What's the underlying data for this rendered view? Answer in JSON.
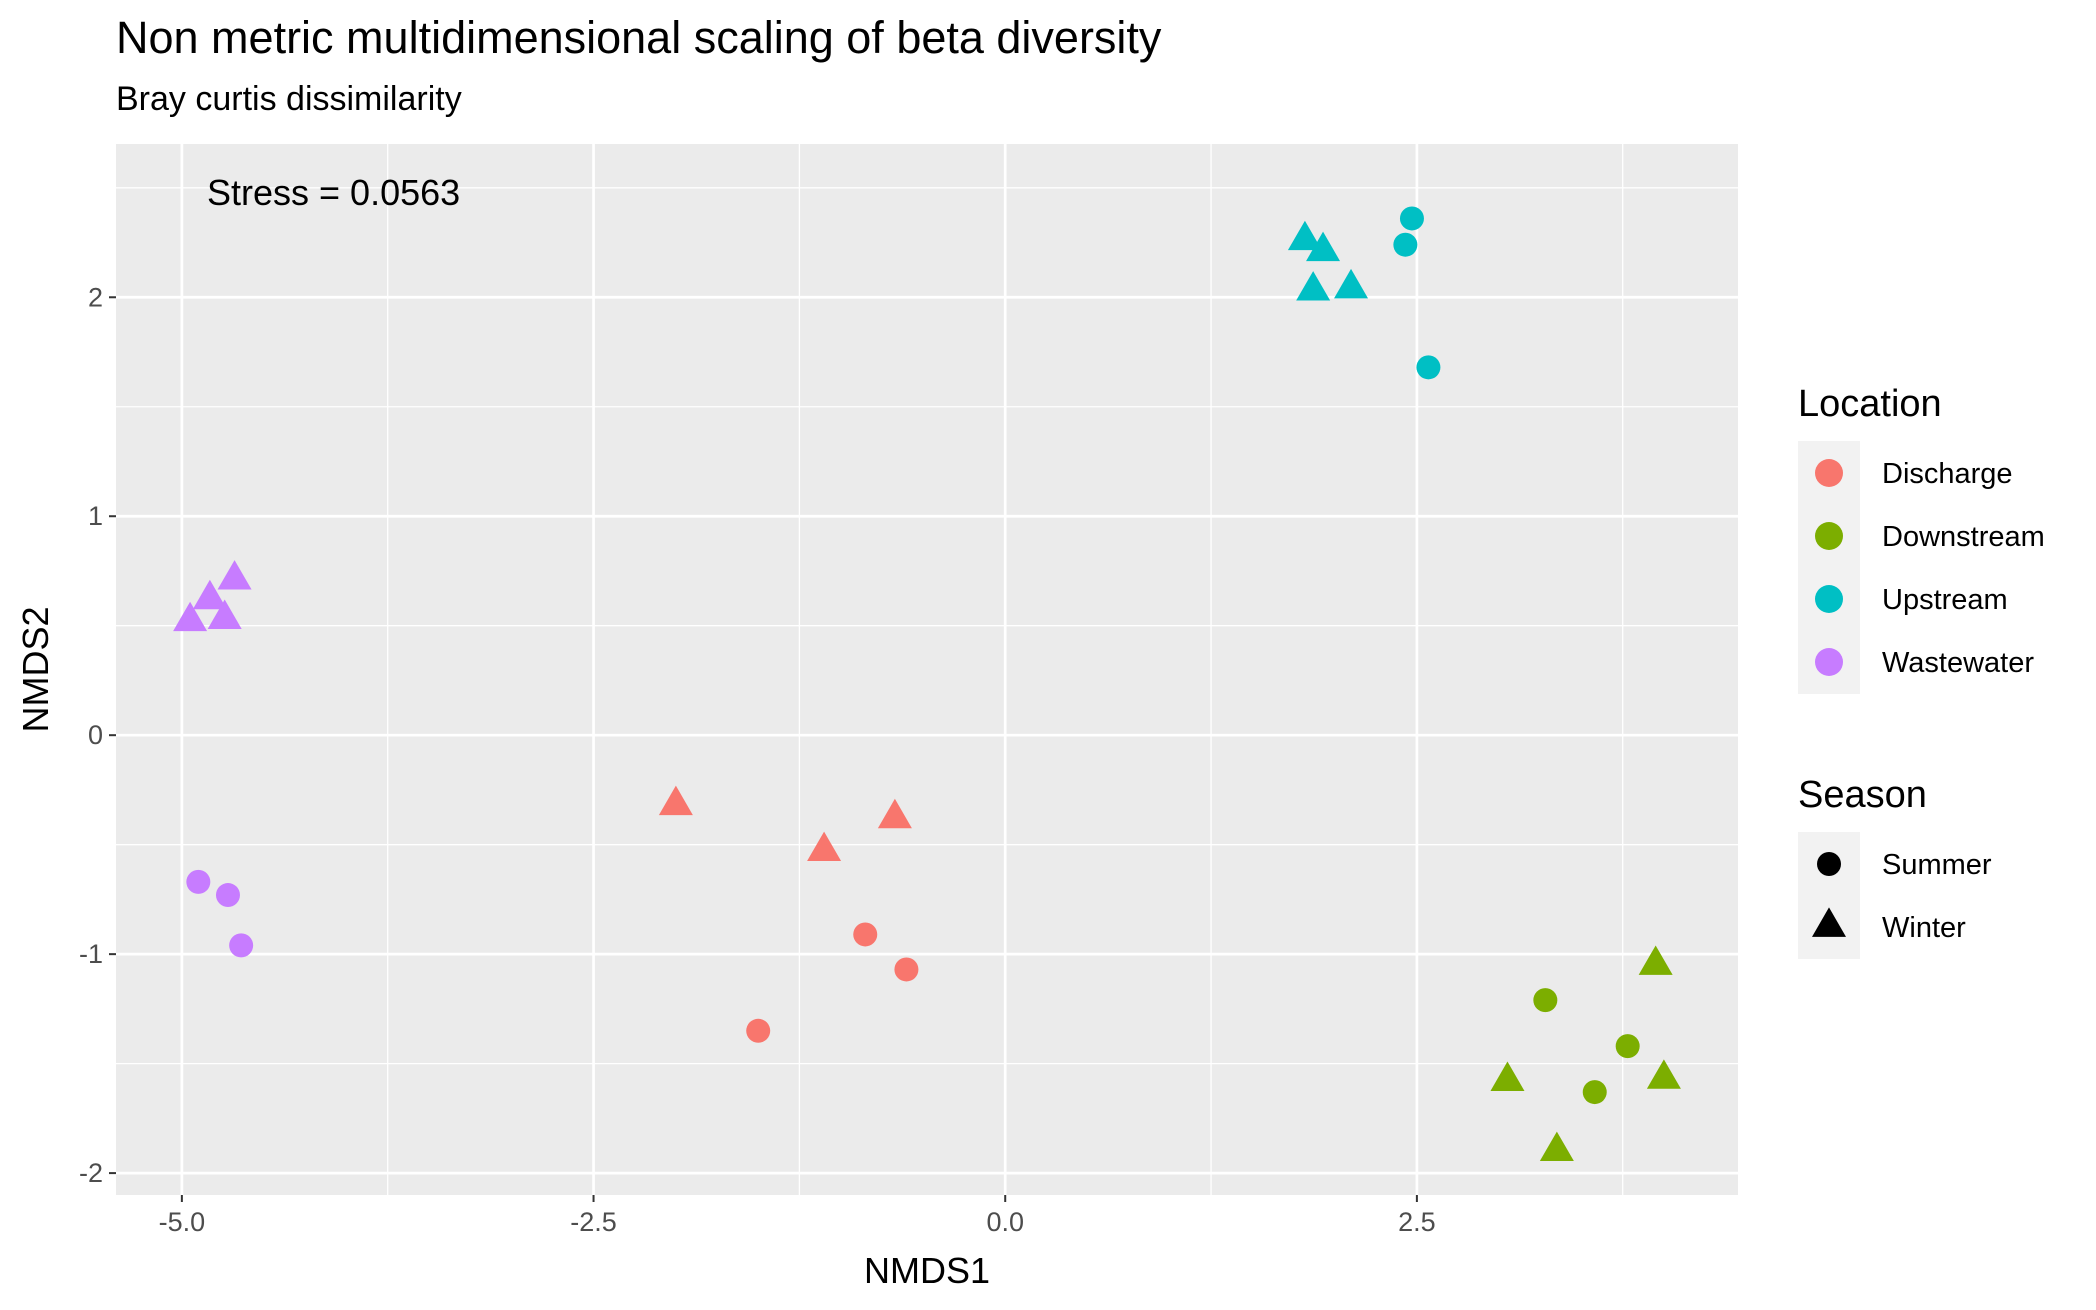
{
  "chart_data": {
    "type": "scatter",
    "title": "Non metric multidimensional scaling of beta diversity",
    "subtitle": "Bray curtis dissimilarity",
    "xlabel": "NMDS1",
    "ylabel": "NMDS2",
    "xlim": [
      -5.4,
      4.45
    ],
    "ylim": [
      -2.1,
      2.7
    ],
    "x_ticks": [
      -5.0,
      -2.5,
      0.0,
      2.5
    ],
    "x_tick_labels": [
      "-5.0",
      "-2.5",
      "0.0",
      "2.5"
    ],
    "y_ticks": [
      -2,
      -1,
      0,
      1,
      2
    ],
    "y_tick_labels": [
      "-2",
      "-1",
      "0",
      "1",
      "2"
    ],
    "grid": true,
    "annotation": "Stress = 0.0563",
    "colors": {
      "Discharge": "#F8766D",
      "Downstream": "#7CAE00",
      "Upstream": "#00BFC4",
      "Wastewater": "#C77CFF",
      "panel_background": "#EBEBEB",
      "grid": "#FFFFFF"
    },
    "legend": {
      "placement": "right",
      "color_title": "Location",
      "color_entries": [
        "Discharge",
        "Downstream",
        "Upstream",
        "Wastewater"
      ],
      "shape_title": "Season",
      "shape_entries": [
        "Summer",
        "Winter"
      ],
      "shapes": {
        "Summer": "circle",
        "Winter": "triangle"
      }
    },
    "points": [
      {
        "location": "Discharge",
        "season": "Winter",
        "x": -2.0,
        "y": -0.32
      },
      {
        "location": "Discharge",
        "season": "Winter",
        "x": -1.1,
        "y": -0.53
      },
      {
        "location": "Discharge",
        "season": "Winter",
        "x": -0.67,
        "y": -0.38
      },
      {
        "location": "Discharge",
        "season": "Summer",
        "x": -0.85,
        "y": -0.91
      },
      {
        "location": "Discharge",
        "season": "Summer",
        "x": -0.6,
        "y": -1.07
      },
      {
        "location": "Discharge",
        "season": "Summer",
        "x": -1.5,
        "y": -1.35
      },
      {
        "location": "Downstream",
        "season": "Winter",
        "x": 3.95,
        "y": -1.05
      },
      {
        "location": "Downstream",
        "season": "Winter",
        "x": 3.05,
        "y": -1.58
      },
      {
        "location": "Downstream",
        "season": "Winter",
        "x": 4.0,
        "y": -1.57
      },
      {
        "location": "Downstream",
        "season": "Winter",
        "x": 3.35,
        "y": -1.9
      },
      {
        "location": "Downstream",
        "season": "Summer",
        "x": 3.28,
        "y": -1.21
      },
      {
        "location": "Downstream",
        "season": "Summer",
        "x": 3.78,
        "y": -1.42
      },
      {
        "location": "Downstream",
        "season": "Summer",
        "x": 3.58,
        "y": -1.63
      },
      {
        "location": "Upstream",
        "season": "Winter",
        "x": 1.82,
        "y": 2.26
      },
      {
        "location": "Upstream",
        "season": "Winter",
        "x": 1.93,
        "y": 2.21
      },
      {
        "location": "Upstream",
        "season": "Winter",
        "x": 1.87,
        "y": 2.03
      },
      {
        "location": "Upstream",
        "season": "Winter",
        "x": 2.1,
        "y": 2.04
      },
      {
        "location": "Upstream",
        "season": "Summer",
        "x": 2.47,
        "y": 2.36
      },
      {
        "location": "Upstream",
        "season": "Summer",
        "x": 2.43,
        "y": 2.24
      },
      {
        "location": "Upstream",
        "season": "Summer",
        "x": 2.57,
        "y": 1.68
      },
      {
        "location": "Wastewater",
        "season": "Winter",
        "x": -4.68,
        "y": 0.71
      },
      {
        "location": "Wastewater",
        "season": "Winter",
        "x": -4.83,
        "y": 0.62
      },
      {
        "location": "Wastewater",
        "season": "Winter",
        "x": -4.95,
        "y": 0.52
      },
      {
        "location": "Wastewater",
        "season": "Winter",
        "x": -4.74,
        "y": 0.53
      },
      {
        "location": "Wastewater",
        "season": "Summer",
        "x": -4.9,
        "y": -0.67
      },
      {
        "location": "Wastewater",
        "season": "Summer",
        "x": -4.72,
        "y": -0.73
      },
      {
        "location": "Wastewater",
        "season": "Summer",
        "x": -4.64,
        "y": -0.96
      }
    ]
  }
}
